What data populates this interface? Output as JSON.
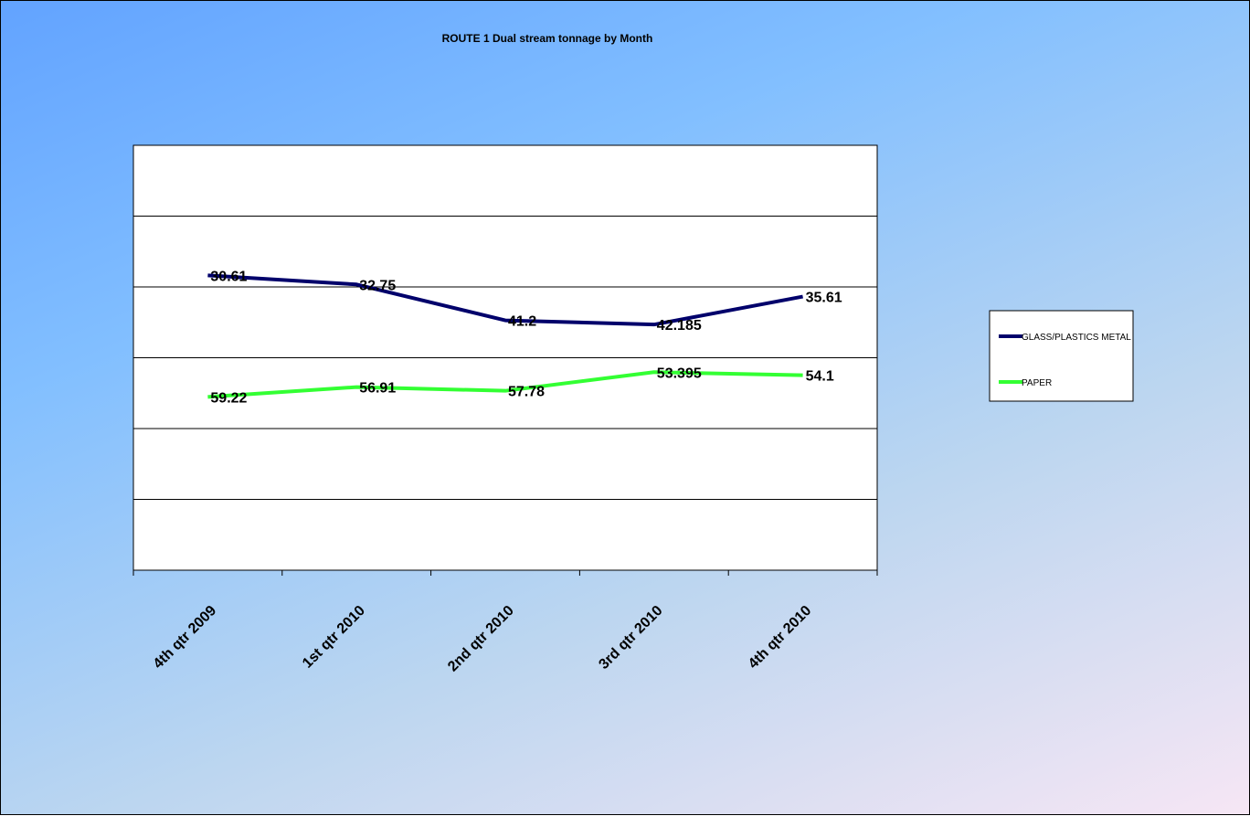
{
  "chart_data": {
    "type": "line",
    "title": "ROUTE 1 Dual stream tonnage by Month",
    "xlabel": "",
    "ylabel": "",
    "categories": [
      "4th qtr 2009",
      "1st qtr 2010",
      "2nd qtr 2010",
      "3rd qtr 2010",
      "4th qtr 2010"
    ],
    "ylim": [
      0,
      100
    ],
    "y_inverted": true,
    "grid": true,
    "legend_position": "right",
    "series": [
      {
        "name": "GLASS/PLASTICS METAL",
        "values": [
          30.61,
          32.75,
          41.2,
          42.185,
          35.61
        ],
        "labels": [
          "30.61",
          "32.75",
          "41.2",
          "42.185",
          "35.61"
        ],
        "color": "#00006b"
      },
      {
        "name": "PAPER",
        "values": [
          59.22,
          56.91,
          57.78,
          53.395,
          54.1
        ],
        "labels": [
          "59.22",
          "56.91",
          "57.78",
          "53.395",
          "54.1"
        ],
        "color": "#33ff33"
      }
    ]
  }
}
